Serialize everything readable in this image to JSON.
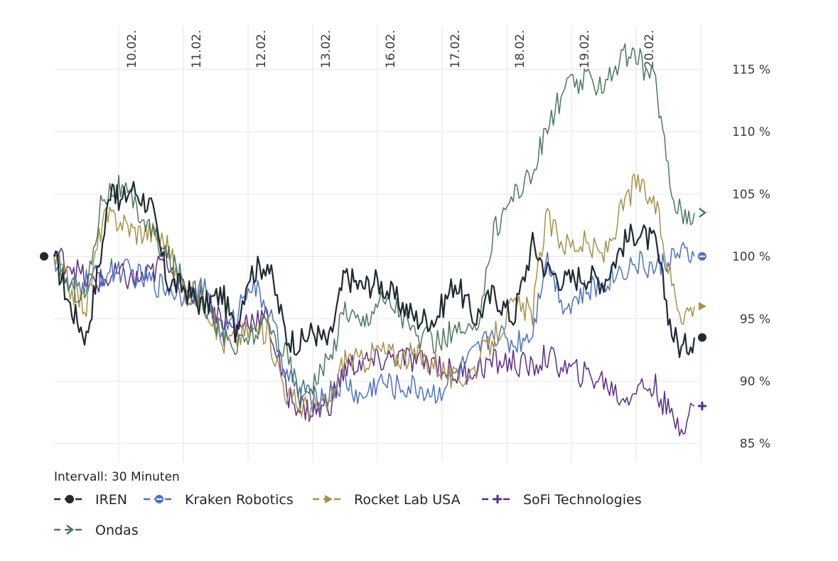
{
  "chart_data": {
    "type": "line",
    "title": "",
    "xlabel": "",
    "ylabel": "",
    "x_tick_labels": [
      "10.02.",
      "11.02.",
      "12.02.",
      "13.02.",
      "16.02.",
      "17.02.",
      "18.02.",
      "19.02.",
      "20.02."
    ],
    "x_tick_positions": [
      1,
      2,
      3,
      4,
      5,
      6,
      7,
      8,
      9
    ],
    "xlim": [
      0,
      10
    ],
    "y_ticks": [
      85,
      90,
      95,
      100,
      105,
      110,
      115
    ],
    "y_tick_labels": [
      "85 %",
      "90 %",
      "95 %",
      "100 %",
      "105 %",
      "110 %",
      "115 %"
    ],
    "ylim": [
      83.5,
      118.5
    ],
    "grid": true,
    "note": "Intervall: 30 Minuten",
    "legend_position": "bottom-left",
    "series": [
      {
        "name": "IREN",
        "color": "#1f2a33",
        "marker": "dot",
        "x": [
          0,
          0.25,
          0.5,
          0.75,
          0.9,
          1.0,
          1.2,
          1.5,
          1.75,
          2.0,
          2.3,
          2.6,
          2.8,
          3.0,
          3.3,
          3.6,
          3.8,
          4.0,
          4.25,
          4.5,
          4.75,
          5.0,
          5.3,
          5.6,
          5.9,
          6.2,
          6.5,
          6.8,
          7.1,
          7.4,
          7.6,
          7.9,
          8.2,
          8.5,
          8.8,
          9.0,
          9.3,
          9.55,
          9.7,
          9.9
        ],
        "values": [
          100,
          96,
          93.5,
          101,
          106.5,
          104,
          105.5,
          104,
          98,
          97.5,
          96,
          97,
          94,
          98.5,
          99.5,
          93.5,
          93,
          94,
          93,
          98.5,
          97.5,
          98,
          96.5,
          95,
          95,
          98,
          95,
          97,
          95,
          101,
          99,
          98,
          98.5,
          98,
          101,
          102,
          101,
          94,
          92.5,
          93.5
        ]
      },
      {
        "name": "Kraken Robotics",
        "color": "#4a72c4",
        "marker": "circle-minus",
        "x": [
          0,
          0.25,
          0.5,
          0.75,
          1.0,
          1.25,
          1.5,
          1.75,
          2.0,
          2.3,
          2.6,
          2.8,
          3.0,
          3.3,
          3.6,
          3.8,
          4.0,
          4.25,
          4.5,
          4.75,
          5.0,
          5.3,
          5.6,
          5.9,
          6.2,
          6.5,
          6.8,
          7.1,
          7.4,
          7.6,
          7.9,
          8.2,
          8.5,
          8.8,
          9.0,
          9.3,
          9.55,
          9.7,
          9.9
        ],
        "values": [
          100,
          97,
          98,
          98.5,
          99,
          98.5,
          98,
          97.5,
          97,
          97.5,
          93.5,
          95,
          98,
          96,
          90.5,
          89,
          88.5,
          89,
          90,
          88.5,
          90,
          89.5,
          89.5,
          89,
          90.5,
          92,
          94,
          93,
          94,
          100,
          96,
          97,
          98,
          99,
          99.5,
          99,
          100,
          100,
          100
        ]
      },
      {
        "name": "Rocket Lab USA",
        "color": "#a8904a",
        "marker": "triangle-right",
        "x": [
          0,
          0.25,
          0.5,
          0.75,
          1.0,
          1.25,
          1.5,
          1.75,
          2.0,
          2.3,
          2.6,
          2.8,
          3.0,
          3.3,
          3.6,
          3.8,
          4.0,
          4.25,
          4.5,
          4.75,
          5.0,
          5.3,
          5.6,
          5.9,
          6.2,
          6.5,
          6.8,
          7.1,
          7.4,
          7.6,
          7.9,
          8.2,
          8.5,
          8.8,
          9.0,
          9.3,
          9.55,
          9.7,
          9.9
        ],
        "values": [
          100,
          97.5,
          96,
          103,
          103,
          102,
          102,
          101,
          97,
          97,
          93,
          93.5,
          94,
          94,
          89,
          88,
          88,
          88,
          92,
          91.5,
          92.5,
          92,
          92,
          91.5,
          90,
          91,
          93.5,
          96,
          95.5,
          103,
          101,
          101,
          100,
          104,
          106,
          104,
          98,
          95.5,
          96
        ]
      },
      {
        "name": "SoFi Technologies",
        "color": "#5b2b8c",
        "marker": "plus",
        "x": [
          0,
          0.25,
          0.5,
          0.75,
          1.0,
          1.25,
          1.5,
          1.75,
          2.0,
          2.3,
          2.6,
          2.8,
          3.0,
          3.3,
          3.6,
          3.8,
          4.0,
          4.25,
          4.5,
          4.75,
          5.0,
          5.3,
          5.6,
          5.9,
          6.2,
          6.5,
          6.8,
          7.1,
          7.4,
          7.6,
          7.9,
          8.2,
          8.5,
          8.8,
          9.0,
          9.3,
          9.55,
          9.7,
          9.9
        ],
        "values": [
          100,
          99.5,
          98,
          98,
          98.5,
          98,
          98.5,
          100,
          97,
          97,
          95,
          94,
          95,
          95,
          89,
          88,
          87.5,
          88,
          91,
          91.5,
          91.5,
          92,
          91.5,
          91.5,
          90.5,
          91,
          91.5,
          91.5,
          91,
          92,
          91,
          90.5,
          90,
          88.5,
          89.5,
          89.5,
          87,
          86.5,
          88
        ]
      },
      {
        "name": "Ondas",
        "color": "#4a7a5c",
        "marker": "chevron-right",
        "x": [
          0,
          0.25,
          0.5,
          0.75,
          1.0,
          1.25,
          1.5,
          1.75,
          2.0,
          2.3,
          2.6,
          2.8,
          3.0,
          3.3,
          3.6,
          3.8,
          4.0,
          4.25,
          4.5,
          4.75,
          5.0,
          5.3,
          5.6,
          5.9,
          6.2,
          6.5,
          6.8,
          7.1,
          7.4,
          7.6,
          7.9,
          8.2,
          8.5,
          8.8,
          9.0,
          9.3,
          9.55,
          9.7,
          9.9
        ],
        "values": [
          100,
          97.5,
          97,
          105,
          105.5,
          104,
          102,
          100,
          98,
          96.5,
          94,
          92.5,
          93.5,
          94.5,
          92,
          89,
          90,
          91.5,
          96,
          94.5,
          96.5,
          96,
          93.5,
          93,
          94,
          93.5,
          102,
          105,
          106.5,
          110,
          113.5,
          114,
          114,
          116,
          116,
          114,
          105,
          103.5,
          103.5
        ]
      }
    ]
  }
}
